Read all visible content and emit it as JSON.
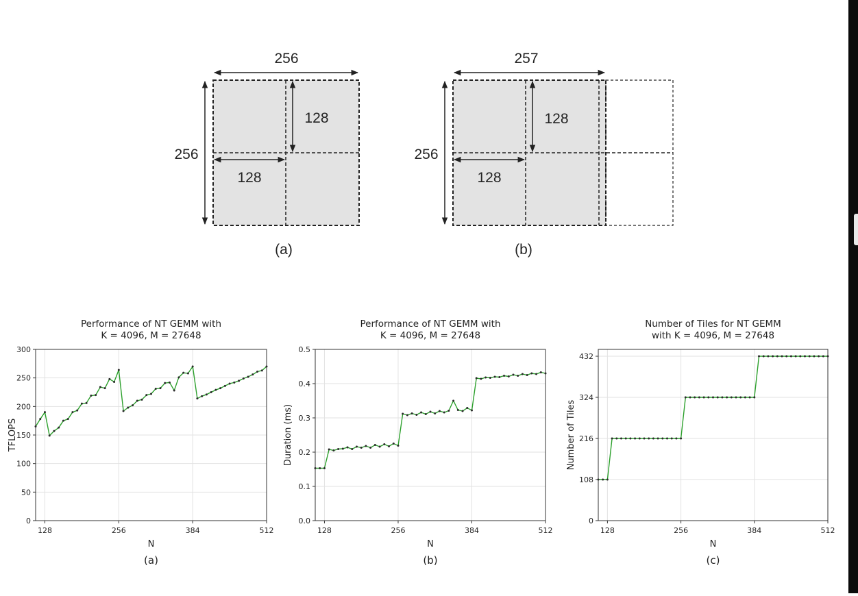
{
  "diagrams": {
    "a": {
      "width_label": "256",
      "height_label": "256",
      "tile_label_top": "128",
      "tile_label_left": "128",
      "caption": "(a)"
    },
    "b": {
      "width_label": "257",
      "height_label": "256",
      "tile_label_top": "128",
      "tile_label_left": "128",
      "caption": "(b)"
    }
  },
  "chart_data": [
    {
      "type": "line",
      "title": "Performance of NT GEMM with",
      "subtitle": "K = 4096, M = 27648",
      "xlabel": "N",
      "ylabel": "TFLOPS",
      "caption": "(a)",
      "xlim": [
        112,
        512
      ],
      "ylim": [
        0,
        300
      ],
      "xticks": [
        128,
        256,
        384,
        512
      ],
      "yticks": [
        0,
        50,
        100,
        150,
        200,
        250,
        300
      ],
      "grid": true,
      "color": "#2ca02c",
      "x": [
        112,
        120,
        128,
        136,
        144,
        152,
        160,
        168,
        176,
        184,
        192,
        200,
        208,
        216,
        224,
        232,
        240,
        248,
        256,
        264,
        272,
        280,
        288,
        296,
        304,
        312,
        320,
        328,
        336,
        344,
        352,
        360,
        368,
        376,
        384,
        392,
        400,
        408,
        416,
        424,
        432,
        440,
        448,
        456,
        464,
        472,
        480,
        488,
        496,
        504,
        512
      ],
      "y": [
        165,
        178,
        190,
        149,
        157,
        163,
        175,
        178,
        190,
        193,
        205,
        206,
        219,
        220,
        234,
        232,
        248,
        243,
        264,
        192,
        198,
        202,
        210,
        212,
        220,
        222,
        231,
        232,
        241,
        242,
        228,
        251,
        259,
        258,
        270,
        214,
        218,
        221,
        225,
        229,
        232,
        236,
        240,
        242,
        245,
        249,
        252,
        256,
        261,
        263,
        270
      ]
    },
    {
      "type": "line",
      "title": "Performance of NT GEMM with",
      "subtitle": "K = 4096, M = 27648",
      "xlabel": "N",
      "ylabel": "Duration (ms)",
      "caption": "(b)",
      "xlim": [
        112,
        512
      ],
      "ylim": [
        0.0,
        0.5
      ],
      "xticks": [
        128,
        256,
        384,
        512
      ],
      "yticks": [
        0.0,
        0.1,
        0.2,
        0.3,
        0.4,
        0.5
      ],
      "grid": true,
      "color": "#2ca02c",
      "x": [
        112,
        120,
        128,
        136,
        144,
        152,
        160,
        168,
        176,
        184,
        192,
        200,
        208,
        216,
        224,
        232,
        240,
        248,
        256,
        264,
        272,
        280,
        288,
        296,
        304,
        312,
        320,
        328,
        336,
        344,
        352,
        360,
        368,
        376,
        384,
        392,
        400,
        408,
        416,
        424,
        432,
        440,
        448,
        456,
        464,
        472,
        480,
        488,
        496,
        504,
        512
      ],
      "y": [
        0.153,
        0.153,
        0.153,
        0.208,
        0.205,
        0.209,
        0.21,
        0.214,
        0.209,
        0.216,
        0.213,
        0.218,
        0.213,
        0.221,
        0.216,
        0.223,
        0.217,
        0.225,
        0.219,
        0.312,
        0.308,
        0.313,
        0.309,
        0.316,
        0.311,
        0.318,
        0.313,
        0.32,
        0.316,
        0.321,
        0.35,
        0.323,
        0.32,
        0.329,
        0.322,
        0.416,
        0.414,
        0.418,
        0.417,
        0.42,
        0.419,
        0.423,
        0.421,
        0.426,
        0.423,
        0.428,
        0.425,
        0.43,
        0.428,
        0.433,
        0.43
      ]
    },
    {
      "type": "line",
      "title": "Number of Tiles for NT GEMM",
      "subtitle": "with K = 4096, M = 27648",
      "xlabel": "N",
      "ylabel": "Number of Tiles",
      "caption": "(c)",
      "xlim": [
        112,
        512
      ],
      "ylim": [
        0,
        432
      ],
      "xticks": [
        128,
        256,
        384,
        512
      ],
      "yticks": [
        0,
        108,
        216,
        324,
        432
      ],
      "grid": true,
      "color": "#2ca02c",
      "x": [
        112,
        120,
        128,
        136,
        144,
        152,
        160,
        168,
        176,
        184,
        192,
        200,
        208,
        216,
        224,
        232,
        240,
        248,
        256,
        264,
        272,
        280,
        288,
        296,
        304,
        312,
        320,
        328,
        336,
        344,
        352,
        360,
        368,
        376,
        384,
        392,
        400,
        408,
        416,
        424,
        432,
        440,
        448,
        456,
        464,
        472,
        480,
        488,
        496,
        504,
        512
      ],
      "y": [
        108,
        108,
        108,
        216,
        216,
        216,
        216,
        216,
        216,
        216,
        216,
        216,
        216,
        216,
        216,
        216,
        216,
        216,
        216,
        324,
        324,
        324,
        324,
        324,
        324,
        324,
        324,
        324,
        324,
        324,
        324,
        324,
        324,
        324,
        324,
        432,
        432,
        432,
        432,
        432,
        432,
        432,
        432,
        432,
        432,
        432,
        432,
        432,
        432,
        432,
        432
      ]
    }
  ]
}
